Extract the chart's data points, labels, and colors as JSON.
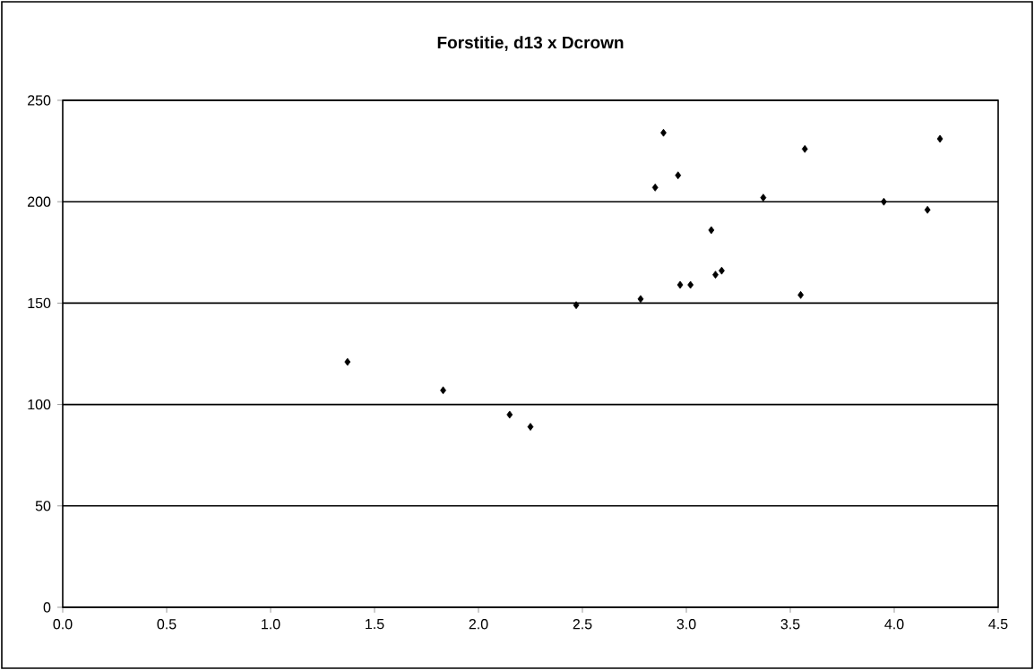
{
  "chart_data": {
    "type": "scatter",
    "title": "Forstitie, d13 x Dcrown",
    "x": [
      1.37,
      1.83,
      2.15,
      2.25,
      2.47,
      2.78,
      2.85,
      2.89,
      2.96,
      2.97,
      3.02,
      3.12,
      3.14,
      3.17,
      3.37,
      3.55,
      3.57,
      3.95,
      4.16,
      4.22
    ],
    "values": [
      121,
      107,
      95,
      89,
      149,
      152,
      207,
      234,
      213,
      159,
      159,
      186,
      164,
      166,
      202,
      154,
      226,
      200,
      196,
      231
    ],
    "color": "#000000",
    "marker": "diamond",
    "xlim": [
      0,
      4.5
    ],
    "xticks": [
      {
        "value": 0,
        "label": "0.0"
      },
      {
        "value": 0.5,
        "label": "0.5"
      },
      {
        "value": 1,
        "label": "1.0"
      },
      {
        "value": 1.5,
        "label": "1.5"
      },
      {
        "value": 2,
        "label": "2.0"
      },
      {
        "value": 2.5,
        "label": "2.5"
      },
      {
        "value": 3,
        "label": "3.0"
      },
      {
        "value": 3.5,
        "label": "3.5"
      },
      {
        "value": 4,
        "label": "4.0"
      },
      {
        "value": 4.5,
        "label": "4.5"
      }
    ],
    "ylim": [
      0,
      250
    ],
    "yticks": [
      0,
      50,
      100,
      150,
      200,
      250
    ],
    "grid": "y"
  }
}
